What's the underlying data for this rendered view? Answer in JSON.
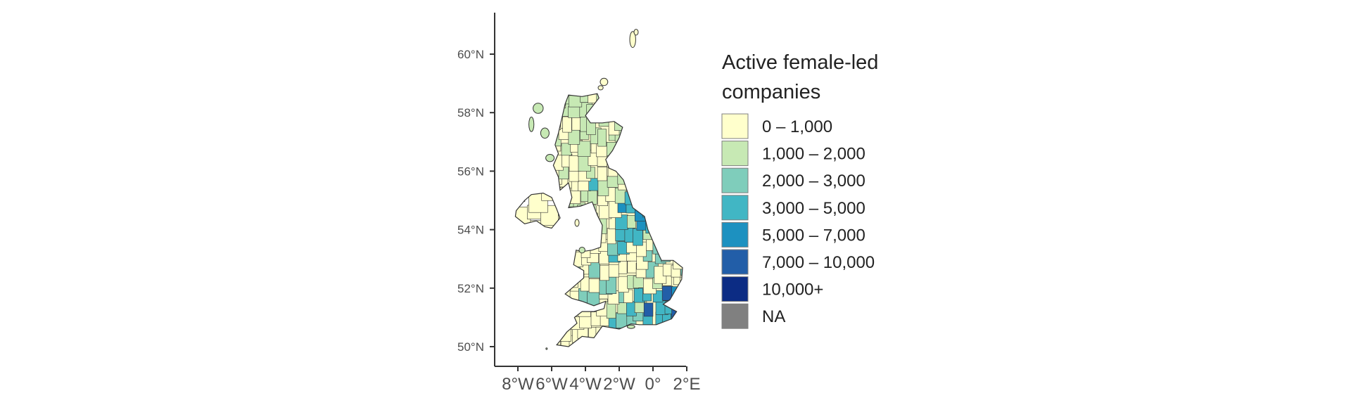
{
  "map": {
    "legend": {
      "title_lines": [
        "Active female-led",
        "companies"
      ],
      "items": [
        {
          "label": "0 – 1,000",
          "color": "#FFFFCC"
        },
        {
          "label": "1,000 – 2,000",
          "color": "#C7E9B4"
        },
        {
          "label": "2,000 – 3,000",
          "color": "#7FCDBB"
        },
        {
          "label": "3,000 – 5,000",
          "color": "#41B6C4"
        },
        {
          "label": "5,000 – 7,000",
          "color": "#1D91C0"
        },
        {
          "label": "7,000 – 10,000",
          "color": "#225EA8"
        },
        {
          "label": "10,000+",
          "color": "#0C2C84"
        },
        {
          "label": "NA",
          "color": "#808080"
        }
      ]
    },
    "y_axis": {
      "ticks": [
        {
          "value": 50,
          "label": "50°N"
        },
        {
          "value": 52,
          "label": "52°N"
        },
        {
          "value": 54,
          "label": "54°N"
        },
        {
          "value": 56,
          "label": "56°N"
        },
        {
          "value": 58,
          "label": "58°N"
        },
        {
          "value": 60,
          "label": "60°N"
        }
      ]
    },
    "x_axis": {
      "ticks": [
        {
          "value": -8,
          "label": "8°W"
        },
        {
          "value": -6,
          "label": "6°W"
        },
        {
          "value": -4,
          "label": "4°W"
        },
        {
          "value": -2,
          "label": "2°W"
        },
        {
          "value": 0,
          "label": "0°"
        },
        {
          "value": 2,
          "label": "2°E"
        }
      ]
    }
  }
}
